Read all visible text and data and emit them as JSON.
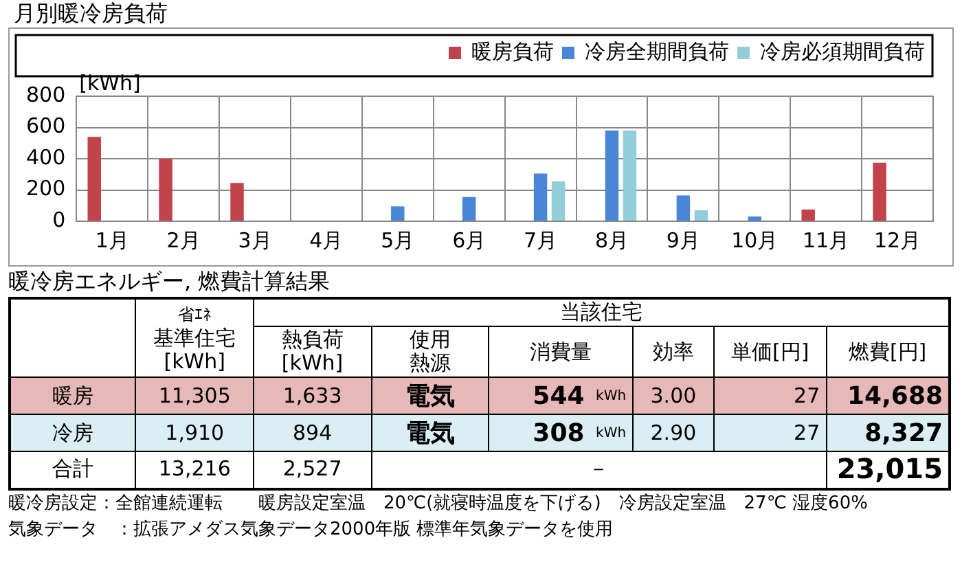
{
  "chart_data": [
    {
      "type": "bar",
      "title": "月別暖冷房負荷",
      "ylabel": "[kWh]",
      "categories": [
        "1月",
        "2月",
        "3月",
        "4月",
        "5月",
        "6月",
        "7月",
        "8月",
        "9月",
        "10月",
        "11月",
        "12月"
      ],
      "series": [
        {
          "name": "暖房負荷",
          "color": "#c0444a",
          "values": [
            540,
            400,
            245,
            0,
            0,
            0,
            0,
            0,
            0,
            0,
            75,
            375
          ]
        },
        {
          "name": "冷房全期間負荷",
          "color": "#4a86d8",
          "values": [
            0,
            0,
            0,
            0,
            95,
            155,
            305,
            580,
            165,
            30,
            0,
            0
          ]
        },
        {
          "name": "冷房必須期間負荷",
          "color": "#92cddc",
          "values": [
            0,
            0,
            0,
            0,
            0,
            0,
            255,
            580,
            70,
            0,
            0,
            0
          ]
        }
      ],
      "ylim": [
        0,
        800
      ],
      "yticks": [
        0,
        200,
        400,
        600,
        800
      ],
      "grid": true,
      "legend": "top"
    },
    {
      "type": "other",
      "title": "暖冷房エネルギー, 燃費計算結果",
      "annotations": [
        "省ｴﾈ",
        "基準住宅[kWh]",
        "当該住宅",
        "熱負荷[kWh]",
        "使用熱源",
        "消費量",
        "効率",
        "単価[円]",
        "燃費[円]",
        "暖房",
        "11,305",
        "1,633",
        "電気",
        "544",
        "kWh",
        "3.00",
        "27",
        "14,688",
        "冷房",
        "1,910",
        "894",
        "電気",
        "308",
        "kWh",
        "2.90",
        "27",
        "8,327",
        "合計",
        "13,216",
        "2,527",
        "－",
        "23,015",
        "暖冷房設定：全館連続運転　　暖房設定室温　20℃(就寝時温度を下げる)　冷房設定室温　27℃ 湿度60%",
        "気象データ　：拡張アメダス気象データ2000年版 標準年気象データを使用"
      ]
    }
  ]
}
